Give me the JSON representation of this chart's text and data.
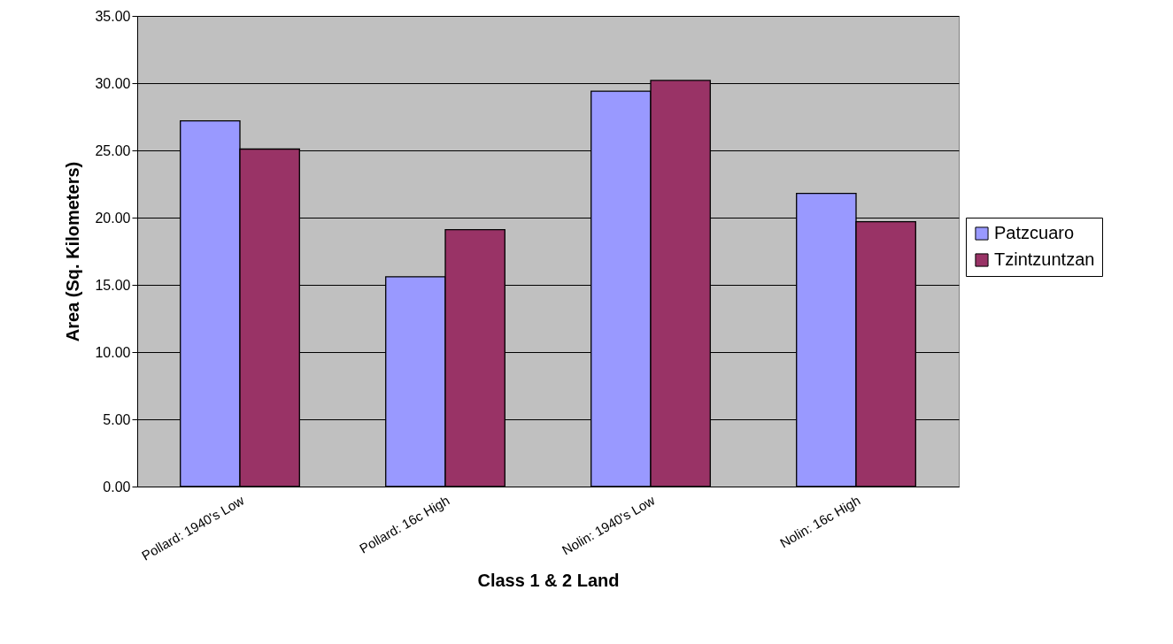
{
  "chart_data": {
    "type": "bar",
    "xlabel": "Class 1 & 2 Land",
    "ylabel": "Area (Sq. Kilometers)",
    "categories": [
      "Pollard:  1940's Low",
      "Pollard:  16c High",
      "Nolin:  1940's Low",
      "Nolin:  16c High"
    ],
    "series": [
      {
        "name": "Patzcuaro",
        "color": "#9999ff",
        "values": [
          27.2,
          15.6,
          29.4,
          21.8
        ]
      },
      {
        "name": "Tzintzuntzan",
        "color": "#993366",
        "values": [
          25.1,
          19.1,
          30.2,
          19.7
        ]
      }
    ],
    "ylim": [
      0,
      35
    ],
    "yticks": [
      {
        "value": 0,
        "label": "0.00"
      },
      {
        "value": 5,
        "label": "5.00"
      },
      {
        "value": 10,
        "label": "10.00"
      },
      {
        "value": 15,
        "label": "15.00"
      },
      {
        "value": 20,
        "label": "20.00"
      },
      {
        "value": 25,
        "label": "25.00"
      },
      {
        "value": 30,
        "label": "30.00"
      },
      {
        "value": 35,
        "label": "35.00"
      }
    ],
    "grid": "y",
    "legend": "right"
  }
}
